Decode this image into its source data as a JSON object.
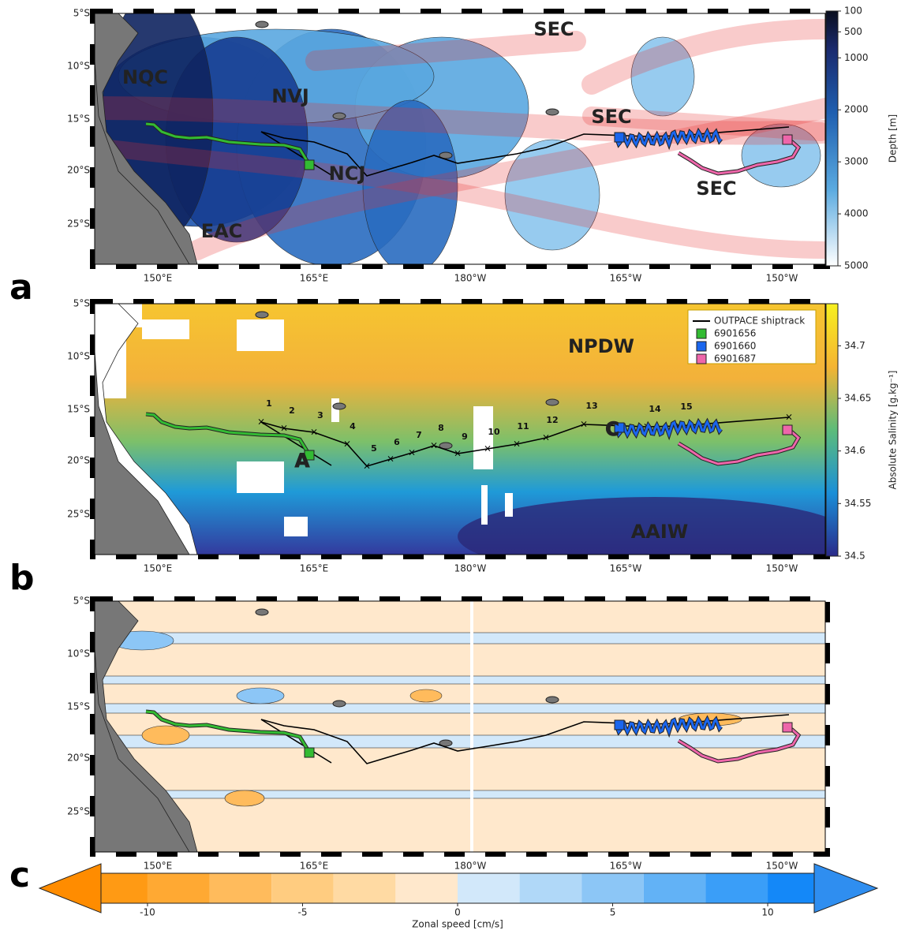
{
  "map_axes": {
    "lat_labels": [
      "5°S",
      "10°S",
      "15°S",
      "20°S",
      "25°S"
    ],
    "lon_labels": [
      "150°E",
      "165°E",
      "180°W",
      "165°W",
      "150°W"
    ]
  },
  "panels": [
    {
      "letter": "a",
      "annotations": [
        "SEC",
        "SEC",
        "NQC",
        "NVJ",
        "SEC",
        "NCJ",
        "EAC"
      ],
      "colorbar": {
        "label": "Depth [m]",
        "lim": [
          100,
          5000
        ],
        "ticks": [
          100,
          500,
          1000,
          2000,
          3000,
          4000,
          5000
        ]
      }
    },
    {
      "letter": "b",
      "annotations": [
        "NPDW",
        "AAIW",
        "A",
        "C"
      ],
      "stations": [
        "1",
        "2",
        "3",
        "4",
        "5",
        "6",
        "7",
        "8",
        "9",
        "10",
        "11",
        "12",
        "13",
        "14",
        "15"
      ],
      "legend": [
        {
          "name": "OUTPACE shiptrack",
          "color": "#000000"
        },
        {
          "name": "6901656",
          "color": "#33bb33"
        },
        {
          "name": "6901660",
          "color": "#1a66ee"
        },
        {
          "name": "6901687",
          "color": "#ee66aa"
        }
      ],
      "colorbar": {
        "label": "Absolute Salinity [g.kg⁻¹]",
        "lim": [
          34.5,
          34.74
        ],
        "ticks": [
          34.5,
          34.55,
          34.6,
          34.65,
          34.7
        ]
      }
    },
    {
      "letter": "c",
      "colorbar": {
        "label": "Zonal speed [cm/s]",
        "lim": [
          -11.5,
          11.5
        ],
        "ticks": [
          -10,
          -5,
          0,
          5,
          10
        ],
        "levels": [
          -10,
          -8,
          -6,
          -4,
          -2,
          0,
          2,
          4,
          6,
          8,
          10
        ],
        "colors": [
          "#ff9a14",
          "#ffa933",
          "#ffbb5c",
          "#ffcc80",
          "#ffdaa3",
          "#ffe8cc",
          "#d2e8fa",
          "#b0d8f8",
          "#8cc6f6",
          "#62b2f6",
          "#3a9ef8",
          "#1488f8"
        ]
      }
    }
  ]
}
